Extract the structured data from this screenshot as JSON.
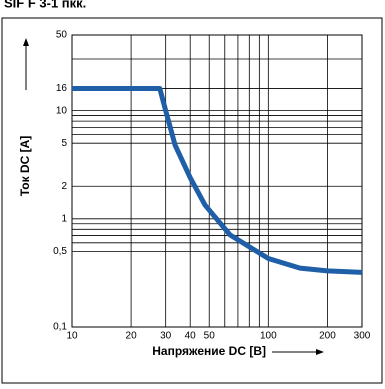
{
  "chart_data": {
    "type": "line",
    "title": "SIF F 3-1 пкк.",
    "xlabel": "Напряжение DC [B]",
    "ylabel": "Ток DC [A]",
    "xscale": "log",
    "yscale": "log",
    "grid": true,
    "xlim": [
      10,
      300
    ],
    "ylim": [
      0.1,
      50
    ],
    "xticks": [
      10,
      20,
      30,
      40,
      50,
      100,
      200,
      300
    ],
    "xminor": [
      60,
      70,
      80,
      90
    ],
    "yticks": [
      {
        "value": 0.1,
        "label": "0,1"
      },
      {
        "value": 0.5,
        "label": "0,5"
      },
      1,
      2,
      5,
      10,
      16,
      50
    ],
    "yminor": [
      0.6,
      0.7,
      0.8,
      0.9,
      6,
      7,
      8,
      9,
      30
    ],
    "series": [
      {
        "color": "#1f5fa8",
        "x": [
          10,
          28,
          30,
          33.5,
          40,
          47.6,
          63.8,
          100,
          145,
          200,
          300
        ],
        "values": [
          16,
          16,
          10,
          4.8,
          2.4,
          1.34,
          0.71,
          0.43,
          0.35,
          0.33,
          0.32
        ]
      }
    ]
  }
}
